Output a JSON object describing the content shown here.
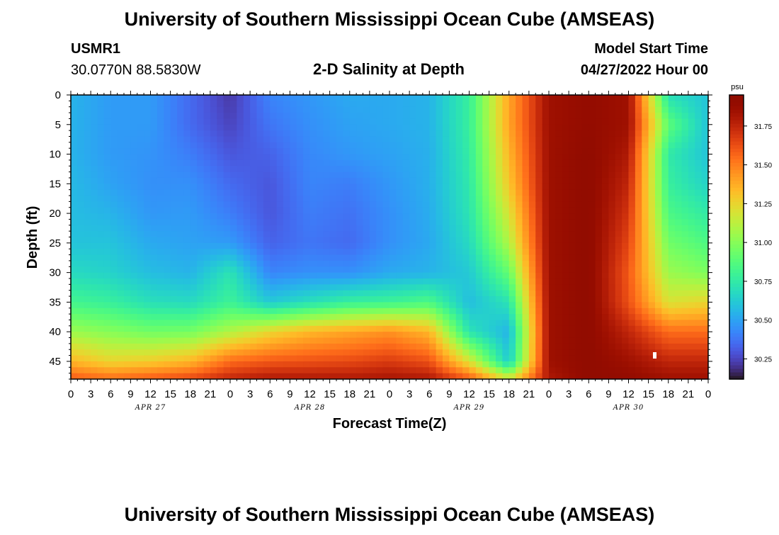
{
  "page": {
    "title": "University of Southern Mississippi Ocean Cube (AMSEAS)",
    "footer_title": "University of Southern Mississippi Ocean Cube (AMSEAS)",
    "station_name": "USMR1",
    "station_coords": "30.0770N  88.5830W",
    "plot_title": "2-D Salinity at Depth",
    "model_start_label": "Model Start Time",
    "model_start_value": "04/27/2022 Hour 00"
  },
  "chart_data": {
    "type": "heatmap",
    "title": "2-D Salinity at Depth",
    "xlabel": "Forecast Time(Z)",
    "ylabel": "Depth (ft)",
    "xlim": [
      0,
      96
    ],
    "ylim": [
      48,
      0
    ],
    "x_tick_values": [
      0,
      3,
      6,
      9,
      12,
      15,
      18,
      21,
      24,
      27,
      30,
      33,
      36,
      39,
      42,
      45,
      48,
      51,
      54,
      57,
      60,
      63,
      66,
      69,
      72,
      75,
      78,
      81,
      84,
      87,
      90,
      93,
      96
    ],
    "x_tick_labels": [
      "0",
      "3",
      "6",
      "9",
      "12",
      "15",
      "18",
      "21",
      "0",
      "3",
      "6",
      "9",
      "12",
      "15",
      "18",
      "21",
      "0",
      "3",
      "6",
      "9",
      "12",
      "15",
      "18",
      "21",
      "0",
      "3",
      "6",
      "9",
      "12",
      "15",
      "18",
      "21",
      "0"
    ],
    "y_ticks": [
      0,
      5,
      10,
      15,
      20,
      25,
      30,
      35,
      40,
      45
    ],
    "date_labels": [
      {
        "text": "APR 27",
        "x": 12
      },
      {
        "text": "APR 28",
        "x": 36
      },
      {
        "text": "APR 29",
        "x": 60
      },
      {
        "text": "APR 30",
        "x": 84
      }
    ],
    "colorbar": {
      "unit": "psu",
      "range": [
        30.12,
        31.95
      ],
      "ticks": [
        30.25,
        30.5,
        30.75,
        31.0,
        31.25,
        31.5,
        31.75
      ],
      "tick_labels": [
        "30.25",
        "30.50",
        "30.75",
        "31.00",
        "31.25",
        "31.50",
        "31.75"
      ],
      "colormap": "turbo"
    },
    "time_axis_hours": [
      0,
      6,
      12,
      18,
      24,
      30,
      36,
      42,
      48,
      54,
      60,
      66,
      72,
      78,
      84,
      90,
      96
    ],
    "depth_axis_ft": [
      0,
      5,
      10,
      15,
      20,
      25,
      30,
      35,
      40,
      45,
      48
    ],
    "salinity_psu": [
      [
        30.55,
        30.48,
        30.48,
        30.35,
        30.22,
        30.42,
        30.47,
        30.52,
        30.52,
        30.55,
        30.78,
        31.4,
        31.85,
        31.9,
        31.85,
        30.7,
        30.6
      ],
      [
        30.55,
        30.48,
        30.48,
        30.35,
        30.25,
        30.38,
        30.45,
        30.5,
        30.52,
        30.55,
        30.78,
        31.4,
        31.85,
        31.9,
        31.85,
        30.9,
        30.6
      ],
      [
        30.55,
        30.48,
        30.46,
        30.4,
        30.3,
        30.33,
        30.43,
        30.47,
        30.5,
        30.54,
        30.76,
        31.35,
        31.85,
        31.92,
        31.8,
        30.75,
        30.6
      ],
      [
        30.57,
        30.5,
        30.45,
        30.45,
        30.35,
        30.3,
        30.42,
        30.4,
        30.47,
        30.54,
        30.74,
        31.3,
        31.85,
        31.92,
        31.75,
        30.78,
        30.65
      ],
      [
        30.58,
        30.55,
        30.47,
        30.48,
        30.4,
        30.3,
        30.4,
        30.37,
        30.45,
        30.53,
        30.72,
        31.2,
        31.85,
        31.92,
        31.7,
        30.85,
        30.75
      ],
      [
        30.6,
        30.6,
        30.52,
        30.5,
        30.48,
        30.33,
        30.38,
        30.35,
        30.45,
        30.52,
        30.68,
        31.1,
        31.85,
        31.92,
        31.65,
        30.95,
        30.85
      ],
      [
        30.68,
        30.65,
        30.58,
        30.55,
        30.72,
        30.42,
        30.45,
        30.45,
        30.52,
        30.55,
        30.62,
        30.92,
        31.85,
        31.92,
        31.6,
        31.05,
        30.98
      ],
      [
        30.82,
        30.78,
        30.7,
        30.68,
        30.8,
        30.62,
        30.7,
        30.78,
        30.8,
        30.85,
        30.58,
        30.72,
        31.85,
        31.92,
        31.62,
        31.2,
        31.25
      ],
      [
        31.05,
        31.0,
        30.95,
        30.96,
        31.1,
        31.25,
        31.35,
        31.4,
        31.45,
        31.35,
        30.72,
        30.55,
        31.85,
        31.92,
        31.75,
        31.55,
        31.55
      ],
      [
        31.35,
        31.25,
        31.28,
        31.35,
        31.55,
        31.6,
        31.62,
        31.64,
        31.68,
        31.62,
        31.2,
        30.62,
        31.85,
        31.92,
        31.85,
        31.75,
        31.75
      ],
      [
        31.6,
        31.55,
        31.6,
        31.65,
        31.75,
        31.8,
        31.8,
        31.8,
        31.82,
        31.8,
        31.6,
        31.2,
        31.8,
        31.92,
        31.9,
        31.85,
        31.85
      ]
    ]
  }
}
